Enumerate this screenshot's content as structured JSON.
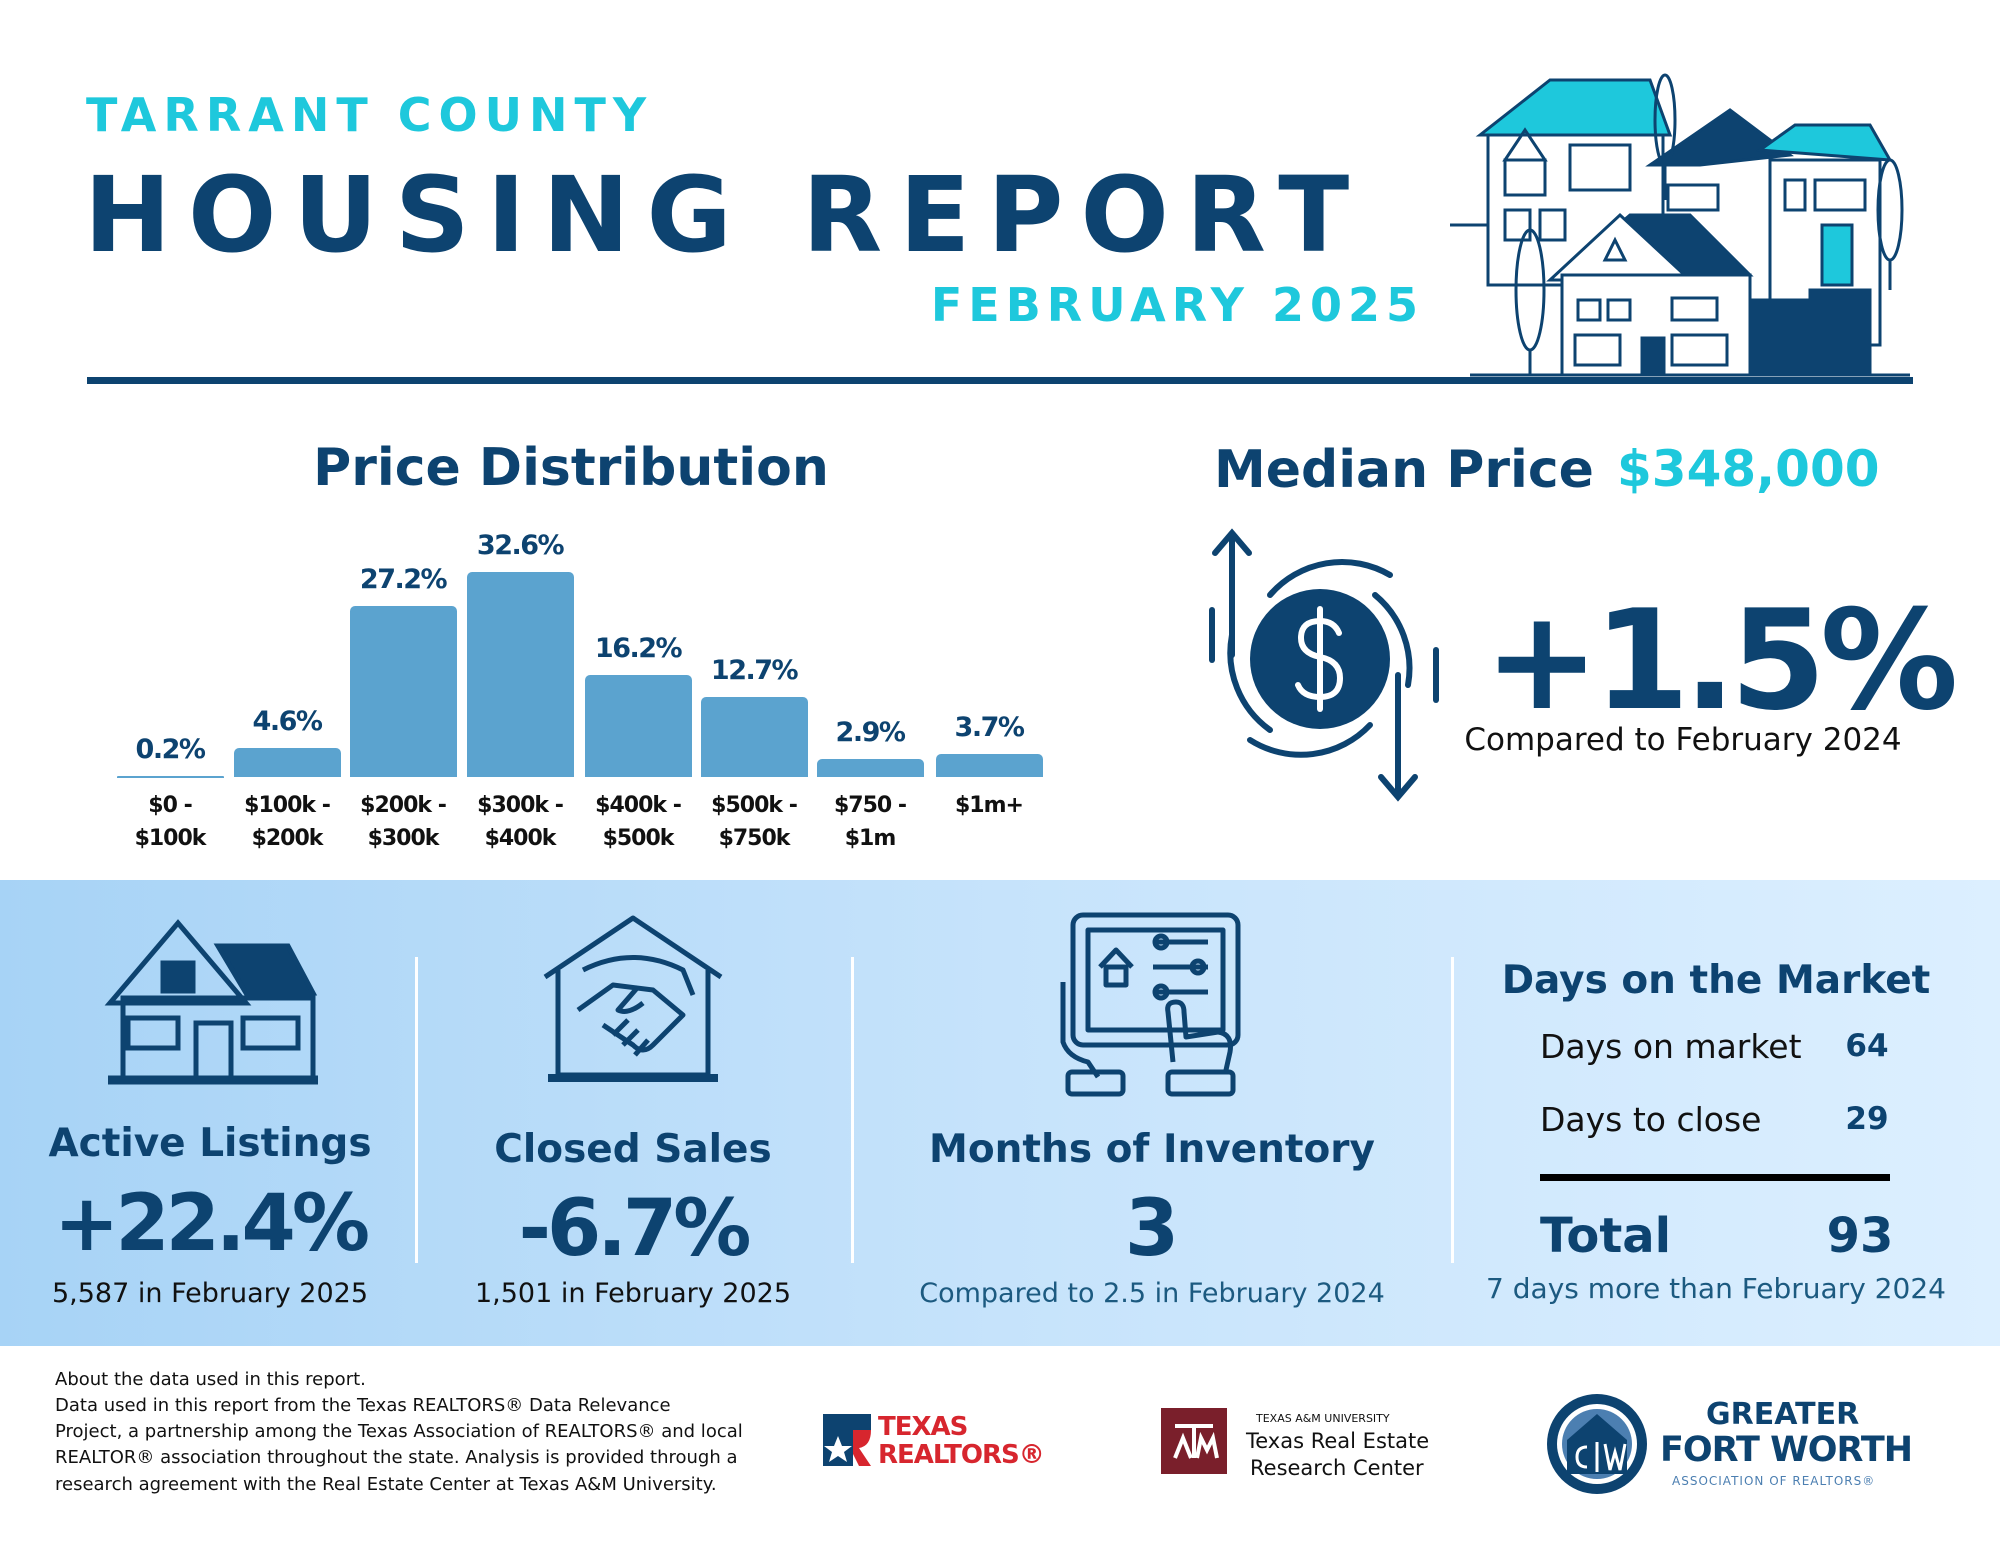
{
  "header": {
    "kicker": "TARRANT COUNTY",
    "title": "HOUSING REPORT",
    "subtitle": "FEBRUARY 2025"
  },
  "chart_data": {
    "type": "bar",
    "title": "Price Distribution",
    "categories": [
      "$0 - $100k",
      "$100k - $200k",
      "$200k - $300k",
      "$300k - $400k",
      "$400k - $500k",
      "$500k - $750k",
      "$750 - $1m",
      "$1m+"
    ],
    "values": [
      0.2,
      4.6,
      27.2,
      32.6,
      16.2,
      12.7,
      2.9,
      3.7
    ],
    "value_labels": [
      "0.2%",
      "4.6%",
      "27.2%",
      "32.6%",
      "16.2%",
      "12.7%",
      "2.9%",
      "3.7%"
    ],
    "color": "#5ba3cf"
  },
  "median": {
    "label": "Median Price",
    "value": "$348,000",
    "change": "+1.5%",
    "comparison": "Compared to February 2024"
  },
  "stats": [
    {
      "title": "Active Listings",
      "value": "+22.4%",
      "note": "5,587 in February 2025"
    },
    {
      "title": "Closed Sales",
      "value": "-6.7%",
      "note": "1,501 in February 2025"
    },
    {
      "title": "Months of Inventory",
      "value": 3,
      "note": "Compared to 2.5 in February 2024"
    }
  ],
  "days_on_market": {
    "title": "Days on the Market",
    "rows": [
      {
        "label": "Days on market",
        "value": 64
      },
      {
        "label": "Days to close",
        "value": 29
      }
    ],
    "total_label": "Total",
    "total_value": 93,
    "note": "7 days more than February 2024"
  },
  "footer": {
    "about": [
      "About the data used in this report.",
      "Data used in this report from the Texas REALTORS® Data Relevance",
      "Project, a partnership among the Texas Association of REALTORS® and local",
      "REALTOR® association throughout the state. Analysis is provided through a",
      "research agreement with the Real Estate Center at Texas A&M University."
    ],
    "logos": {
      "texas_realtors": [
        "TEXAS",
        "REALTORS®"
      ],
      "tamu": [
        "TEXAS A&M UNIVERSITY",
        "Texas Real Estate",
        "Research Center"
      ],
      "gfw": [
        "GREATER",
        "FORT WORTH",
        "ASSOCIATION OF REALTORS®"
      ]
    }
  }
}
